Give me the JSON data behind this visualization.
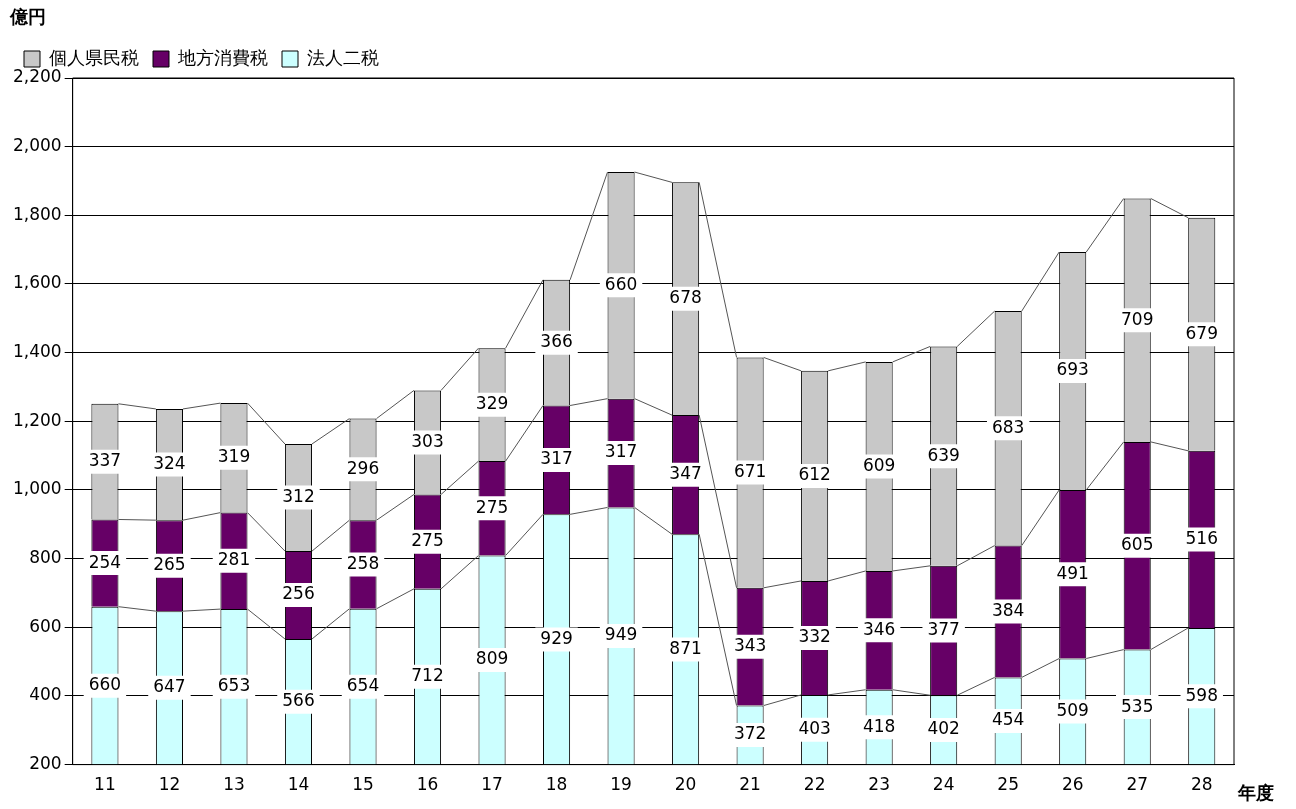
{
  "chart_data": {
    "type": "bar",
    "stacked": true,
    "ylabel": "億円",
    "xlabel": "年度",
    "categories": [
      "11",
      "12",
      "13",
      "14",
      "15",
      "16",
      "17",
      "18",
      "19",
      "20",
      "21",
      "22",
      "23",
      "24",
      "25",
      "26",
      "27",
      "28"
    ],
    "series": [
      {
        "name": "法人二税",
        "color": "#ccffff",
        "values": [
          660,
          647,
          653,
          566,
          654,
          712,
          809,
          929,
          949,
          871,
          372,
          403,
          418,
          402,
          454,
          509,
          535,
          598
        ]
      },
      {
        "name": "地方消費税",
        "color": "#660066",
        "values": [
          254,
          265,
          281,
          256,
          258,
          275,
          275,
          317,
          317,
          347,
          343,
          332,
          346,
          377,
          384,
          491,
          605,
          516
        ]
      },
      {
        "name": "個人県民税",
        "color": "#c8c8c8",
        "values": [
          337,
          324,
          319,
          312,
          296,
          303,
          329,
          366,
          660,
          678,
          671,
          612,
          609,
          639,
          683,
          693,
          709,
          679
        ]
      }
    ],
    "ylim": [
      200,
      2200
    ],
    "yticks": [
      {
        "value": 200,
        "label": "200"
      },
      {
        "value": 400,
        "label": "400"
      },
      {
        "value": 600,
        "label": "600"
      },
      {
        "value": 800,
        "label": "800"
      },
      {
        "value": 1000,
        "label": "1,000"
      },
      {
        "value": 1200,
        "label": "1,200"
      },
      {
        "value": 1400,
        "label": "1,400"
      },
      {
        "value": 1600,
        "label": "1,600"
      },
      {
        "value": 1800,
        "label": "1,800"
      },
      {
        "value": 2000,
        "label": "2,000"
      },
      {
        "value": 2200,
        "label": "2,200"
      }
    ],
    "grid": "y",
    "legend": "top left",
    "data_labels": true
  }
}
